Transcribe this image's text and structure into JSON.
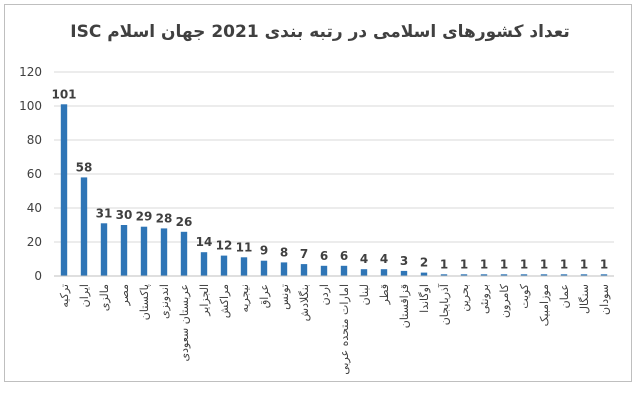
{
  "chart_data": {
    "type": "bar",
    "title": "تعداد کشورهای اسلامی در رتبه بندی 2021 جهان اسلام ISC",
    "xlabel": "",
    "ylabel": "",
    "ylim": [
      0,
      120
    ],
    "yticks": [
      0,
      20,
      40,
      60,
      80,
      100,
      120
    ],
    "grid": true,
    "legend": "none",
    "bar_color": "#2e75b6",
    "categories": [
      "ترکیه",
      "ایران",
      "مالزی",
      "مصر",
      "پاکستان",
      "اندونزی",
      "عربستان سعودی",
      "الجزایر",
      "مراکش",
      "نیجریه",
      "عراق",
      "تونس",
      "بنگلادش",
      "اردن",
      "امارات متحده عربی",
      "لبنان",
      "قطر",
      "قزاقستان",
      "اوگاندا",
      "آذربایجان",
      "بحرین",
      "برونئی",
      "کامرون",
      "کویت",
      "موزامبیک",
      "عمان",
      "سنگال",
      "سودان"
    ],
    "values": [
      101,
      58,
      31,
      30,
      29,
      28,
      26,
      14,
      12,
      11,
      9,
      8,
      7,
      6,
      6,
      4,
      4,
      3,
      2,
      1,
      1,
      1,
      1,
      1,
      1,
      1,
      1,
      1
    ]
  }
}
